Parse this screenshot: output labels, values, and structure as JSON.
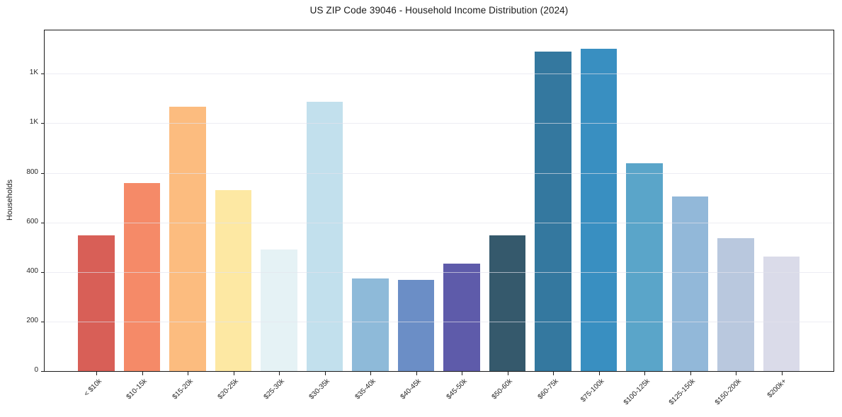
{
  "chart_data": {
    "type": "bar",
    "title": "US ZIP Code 39046 - Household Income Distribution (2024)",
    "xlabel": "",
    "ylabel": "Households",
    "categories": [
      "< $10k",
      "$10-15k",
      "$15-20k",
      "$20-25k",
      "$25-30k",
      "$30-35k",
      "$35-40k",
      "$40-45k",
      "$45-50k",
      "$50-60k",
      "$60-75k",
      "$75-100k",
      "$100-125k",
      "$125-150k",
      "$150-200k",
      "$200k+"
    ],
    "values": [
      548,
      758,
      1068,
      730,
      490,
      1088,
      375,
      368,
      435,
      548,
      1290,
      1300,
      840,
      705,
      535,
      463
    ],
    "bar_colors": [
      "#d85f57",
      "#f58a68",
      "#fcbc7f",
      "#fde8a3",
      "#e5f2f5",
      "#c2e0ed",
      "#8ebad9",
      "#6b8ec6",
      "#5e5baa",
      "#35596c",
      "#34789f",
      "#398fc1",
      "#5aa5c9",
      "#92b8d9",
      "#b9c8de",
      "#dadbe9"
    ],
    "ylim": [
      0,
      1375
    ],
    "yticks": [
      {
        "value": 0,
        "label": "0"
      },
      {
        "value": 200,
        "label": "200"
      },
      {
        "value": 400,
        "label": "400"
      },
      {
        "value": 600,
        "label": "600"
      },
      {
        "value": 800,
        "label": "800"
      },
      {
        "value": 1000,
        "label": "1K"
      },
      {
        "value": 1200,
        "label": "1K"
      }
    ],
    "grid": "horizontal",
    "legend": "none",
    "x_tick_rotation": 45
  },
  "colors": {
    "spine": "#1a1a1a",
    "grid": "rgba(228,228,237,0.65)",
    "title_text": "#1a1a1a",
    "tick_text": "#262626"
  }
}
